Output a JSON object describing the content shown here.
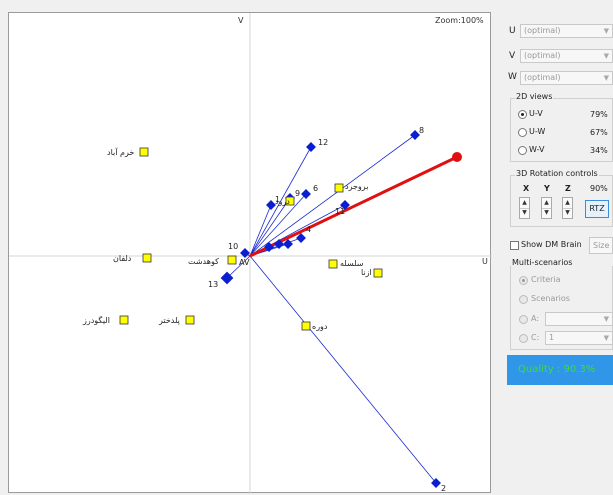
{
  "plot": {
    "zoom_label": "Zoom:100%",
    "axis_v": "V",
    "axis_u": "U",
    "axis_origin": "AV",
    "alternatives": [
      {
        "label": "خرم آباد"
      },
      {
        "label": "دلفان"
      },
      {
        "label": "کوهدشت"
      },
      {
        "label": "الیگودرز"
      },
      {
        "label": "پلدختر"
      },
      {
        "label": "سلسله"
      },
      {
        "label": "ازنا"
      },
      {
        "label": "دوره"
      },
      {
        "label": "بروجرد"
      },
      {
        "label": "درود"
      }
    ],
    "criteria": [
      {
        "label": "2"
      },
      {
        "label": "4"
      },
      {
        "label": "6"
      },
      {
        "label": "8"
      },
      {
        "label": "9"
      },
      {
        "label": "10"
      },
      {
        "label": "11"
      },
      {
        "label": "12"
      },
      {
        "label": "13"
      },
      {
        "label": "1"
      }
    ],
    "colors": {
      "criteria": "#0a1fd0",
      "alternative": "#ffff00",
      "decision_axis": "#e01010"
    }
  },
  "panel": {
    "combo_u": {
      "prefix": "U",
      "value": "(optimal)"
    },
    "combo_v": {
      "prefix": "V",
      "value": "(optimal)"
    },
    "combo_w": {
      "prefix": "W",
      "value": "(optimal)"
    },
    "views": {
      "title": "2D views",
      "options": [
        {
          "label": "U-V",
          "pct": "79%",
          "selected": true
        },
        {
          "label": "U-W",
          "pct": "67%",
          "selected": false
        },
        {
          "label": "W-V",
          "pct": "34%",
          "selected": false
        }
      ]
    },
    "rotation": {
      "title": "3D Rotation controls",
      "x": "X",
      "y": "Y",
      "z": "Z",
      "pct": "90%",
      "rtz_label": "RTZ"
    },
    "dm_brain": {
      "label": "Show DM Brain",
      "size_label": "Size"
    },
    "multi": {
      "title": "Multi-scenarios",
      "criteria_label": "Criteria",
      "scenarios_label": "Scenarios",
      "a_label": "A:",
      "c_label": "C:",
      "c_value": "1"
    },
    "quality": "Quality : 90.3%"
  }
}
